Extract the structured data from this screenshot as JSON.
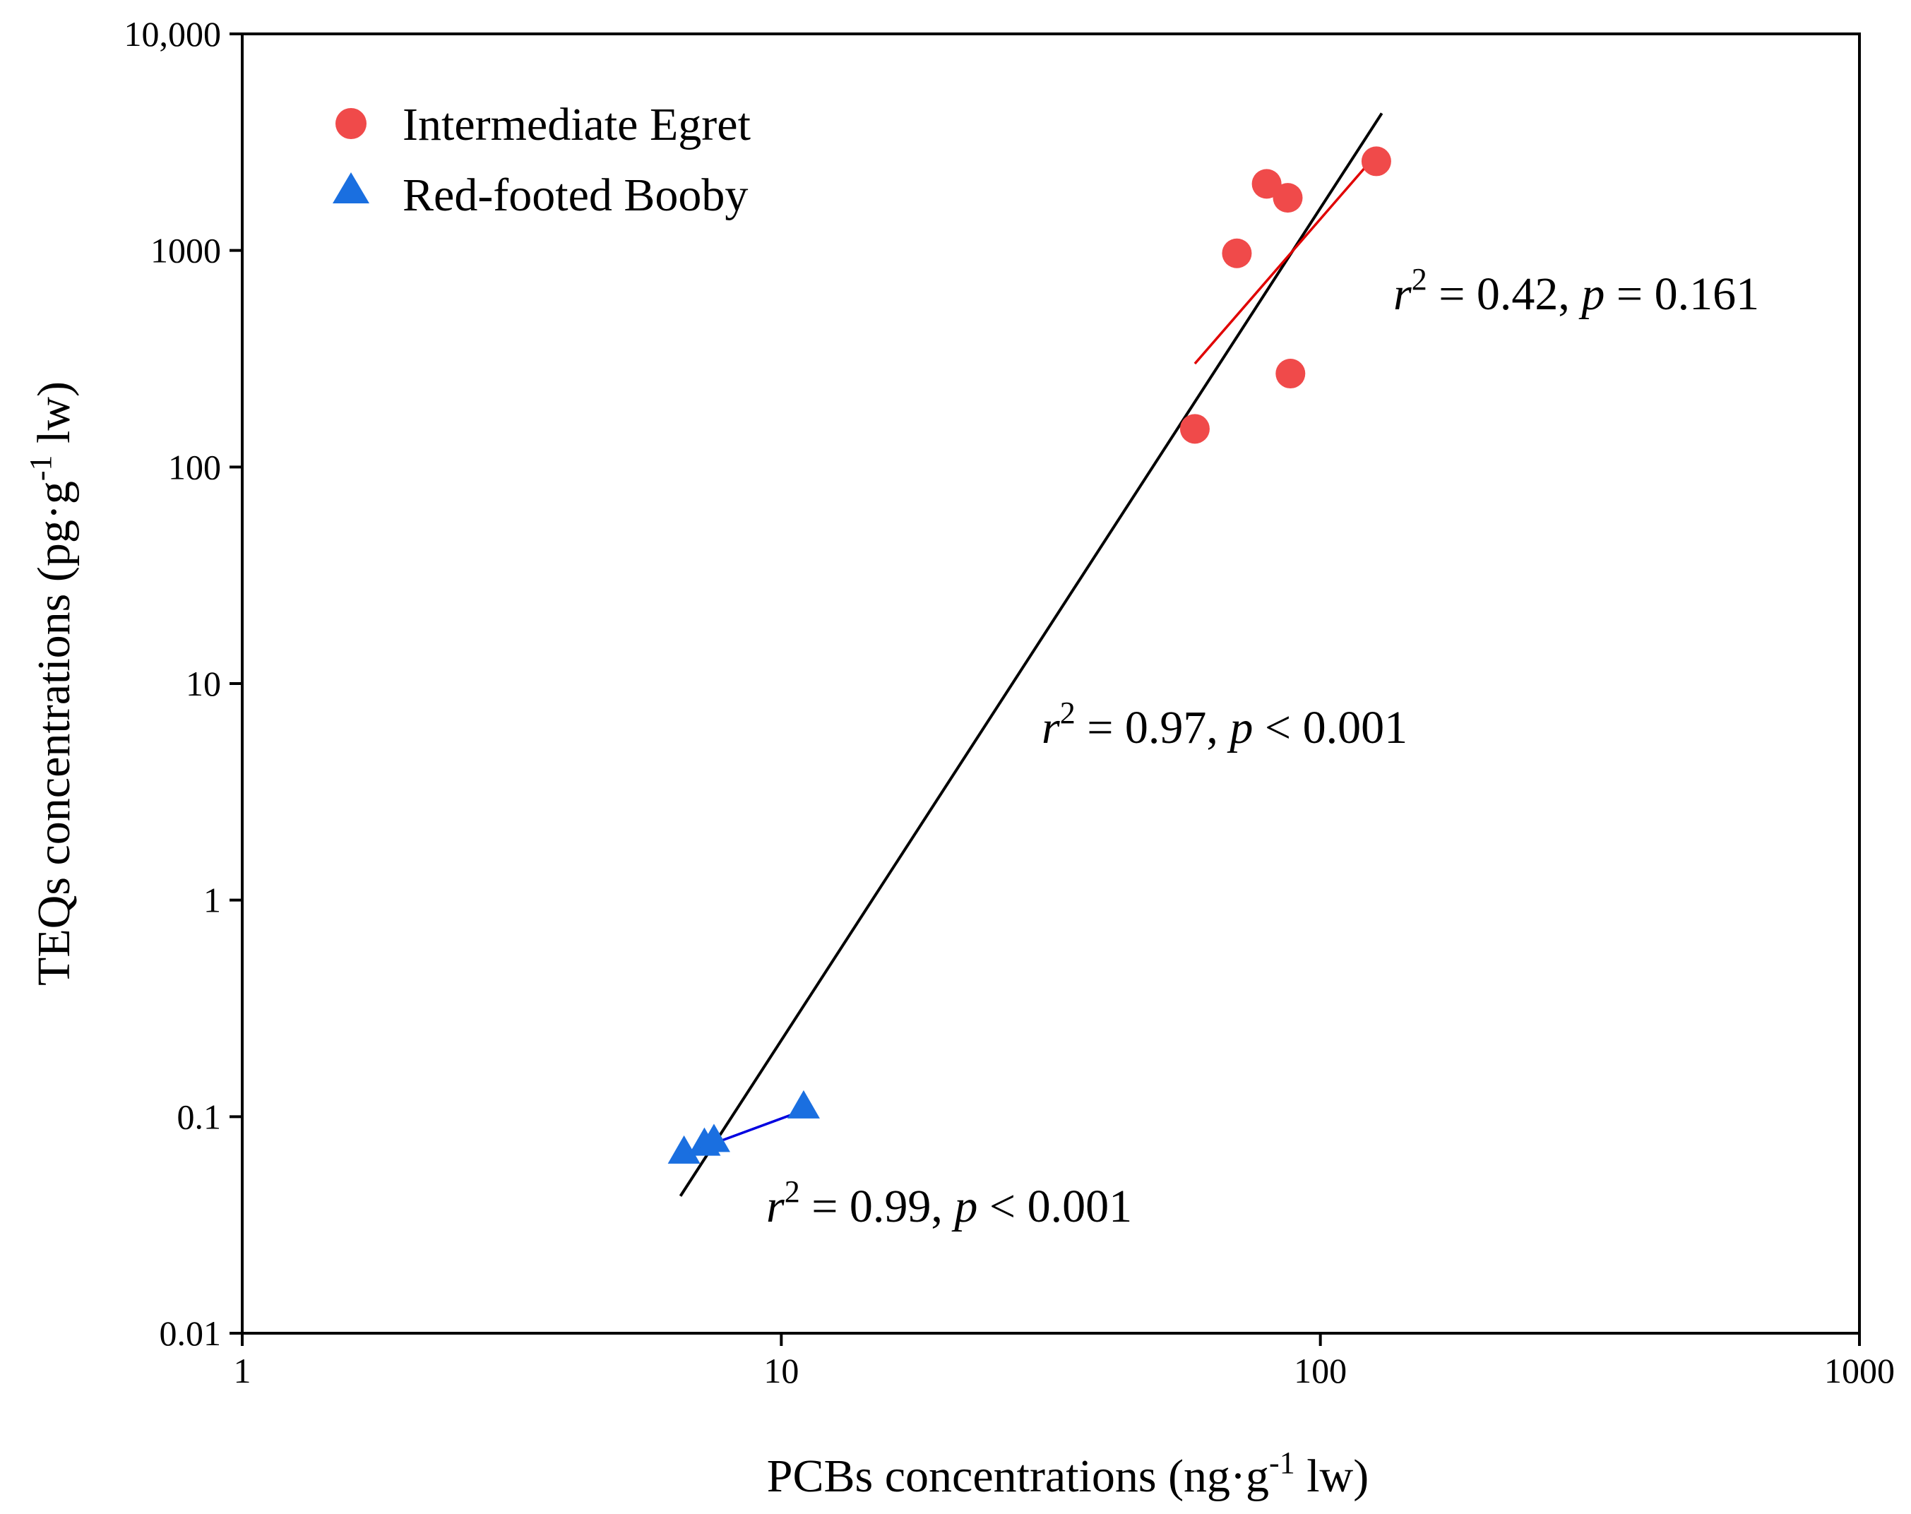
{
  "colors": {
    "egret": "#f04a4a",
    "booby": "#1a6fe0",
    "egret_fit": "#e00000",
    "booby_fit": "#0000e0",
    "overall_fit": "#000000",
    "axis": "#000000"
  },
  "chart_data": {
    "type": "scatter",
    "xscale": "log",
    "yscale": "log",
    "xlim": [
      1,
      1000
    ],
    "ylim": [
      0.01,
      10000
    ],
    "xlabel": {
      "pre": "PCBs concentrations (ng·g",
      "sup": "-1",
      "post": " lw)"
    },
    "ylabel": {
      "pre": "TEQs concentrations (pg·g",
      "sup": "-1",
      "post": " lw)"
    },
    "xticks": [
      {
        "value": 1,
        "label": "1"
      },
      {
        "value": 10,
        "label": "10"
      },
      {
        "value": 100,
        "label": "100"
      },
      {
        "value": 1000,
        "label": "1000"
      }
    ],
    "yticks": [
      {
        "value": 0.01,
        "label": "0.01"
      },
      {
        "value": 0.1,
        "label": "0.1"
      },
      {
        "value": 1,
        "label": "1"
      },
      {
        "value": 10,
        "label": "10"
      },
      {
        "value": 100,
        "label": "100"
      },
      {
        "value": 1000,
        "label": "1000"
      },
      {
        "value": 10000,
        "label": "10,000"
      }
    ],
    "legend": {
      "position": "top-left",
      "entries": [
        {
          "name": "Intermediate Egret",
          "marker": "circle"
        },
        {
          "name": "Red-footed Booby",
          "marker": "triangle"
        }
      ]
    },
    "series": [
      {
        "name": "Intermediate Egret",
        "marker": "circle",
        "points": [
          {
            "x": 58.5,
            "y": 150
          },
          {
            "x": 70,
            "y": 970
          },
          {
            "x": 79.5,
            "y": 2030
          },
          {
            "x": 87,
            "y": 1750
          },
          {
            "x": 88,
            "y": 270
          },
          {
            "x": 127,
            "y": 2580
          }
        ]
      },
      {
        "name": "Red-footed Booby",
        "marker": "triangle",
        "points": [
          {
            "x": 6.6,
            "y": 0.068
          },
          {
            "x": 7.2,
            "y": 0.074
          },
          {
            "x": 7.5,
            "y": 0.077
          },
          {
            "x": 11,
            "y": 0.11
          }
        ]
      }
    ],
    "fits": [
      {
        "name": "overall",
        "color_key": "overall_fit",
        "x": [
          6.5,
          130
        ],
        "y": [
          0.043,
          4300
        ]
      },
      {
        "name": "Intermediate Egret",
        "color_key": "egret_fit",
        "x": [
          58.5,
          125
        ],
        "y": [
          300,
          2650
        ]
      },
      {
        "name": "Red-footed Booby",
        "color_key": "booby_fit",
        "x": [
          6.6,
          11
        ],
        "y": [
          0.067,
          0.107
        ]
      }
    ],
    "annotations": [
      {
        "id": "egret",
        "anchor": {
          "x": 130,
          "y": 600
        },
        "r_pre": "r",
        "r_sup": "2",
        "mid": " = 0.42, ",
        "p": "p",
        "rest": " = 0.161"
      },
      {
        "id": "overall",
        "anchor": {
          "x": 30,
          "y": 4.8
        },
        "r_pre": "r",
        "r_sup": "2",
        "mid": " = 0.97, ",
        "p": "p",
        "rest": " < 0.001"
      },
      {
        "id": "booby",
        "anchor": {
          "x": 9.4,
          "y": 0.032
        },
        "r_pre": "r",
        "r_sup": "2",
        "mid": " = 0.99, ",
        "p": "p",
        "rest": " < 0.001"
      }
    ]
  }
}
